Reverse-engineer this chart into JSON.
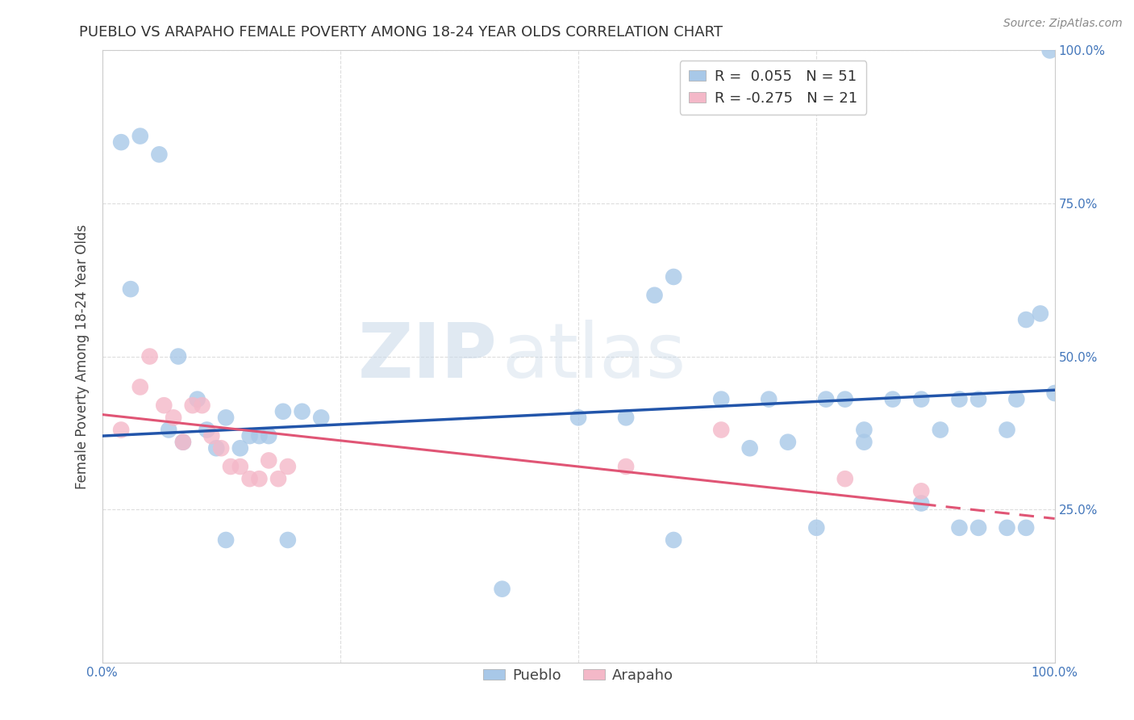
{
  "title": "PUEBLO VS ARAPAHO FEMALE POVERTY AMONG 18-24 YEAR OLDS CORRELATION CHART",
  "source": "Source: ZipAtlas.com",
  "xlabel": "",
  "ylabel": "Female Poverty Among 18-24 Year Olds",
  "xlim": [
    0.0,
    1.0
  ],
  "ylim": [
    0.0,
    1.0
  ],
  "xticks": [
    0.0,
    0.25,
    0.5,
    0.75,
    1.0
  ],
  "xticklabels": [
    "0.0%",
    "",
    "",
    "",
    "100.0%"
  ],
  "yticks": [
    0.0,
    0.25,
    0.5,
    0.75,
    1.0
  ],
  "yticklabels_right": [
    "",
    "25.0%",
    "50.0%",
    "75.0%",
    "100.0%"
  ],
  "pueblo_color": "#a8c8e8",
  "arapaho_color": "#f4b8c8",
  "pueblo_line_color": "#2255aa",
  "arapaho_line_color": "#e05575",
  "pueblo_R": 0.055,
  "pueblo_N": 51,
  "arapaho_R": -0.275,
  "arapaho_N": 21,
  "watermark_zip": "ZIP",
  "watermark_atlas": "atlas",
  "background_color": "#ffffff",
  "grid_color": "#dddddd",
  "pueblo_x": [
    0.02,
    0.04,
    0.06,
    0.07,
    0.085,
    0.1,
    0.11,
    0.12,
    0.13,
    0.145,
    0.155,
    0.165,
    0.175,
    0.19,
    0.21,
    0.23,
    0.5,
    0.58,
    0.6,
    0.65,
    0.7,
    0.72,
    0.76,
    0.78,
    0.8,
    0.83,
    0.86,
    0.88,
    0.9,
    0.92,
    0.95,
    0.96,
    0.97,
    0.985,
    0.995,
    0.03,
    0.08,
    0.13,
    0.195,
    0.42,
    0.55,
    0.6,
    0.68,
    0.75,
    0.8,
    0.86,
    0.9,
    0.92,
    0.95,
    0.97,
    1.0
  ],
  "pueblo_y": [
    0.85,
    0.86,
    0.83,
    0.38,
    0.36,
    0.43,
    0.38,
    0.35,
    0.4,
    0.35,
    0.37,
    0.37,
    0.37,
    0.41,
    0.41,
    0.4,
    0.4,
    0.6,
    0.63,
    0.43,
    0.43,
    0.36,
    0.43,
    0.43,
    0.36,
    0.43,
    0.43,
    0.38,
    0.43,
    0.43,
    0.38,
    0.43,
    0.56,
    0.57,
    1.0,
    0.61,
    0.5,
    0.2,
    0.2,
    0.12,
    0.4,
    0.2,
    0.35,
    0.22,
    0.38,
    0.26,
    0.22,
    0.22,
    0.22,
    0.22,
    0.44
  ],
  "arapaho_x": [
    0.02,
    0.04,
    0.05,
    0.065,
    0.075,
    0.085,
    0.095,
    0.105,
    0.115,
    0.125,
    0.135,
    0.145,
    0.155,
    0.165,
    0.175,
    0.185,
    0.195,
    0.55,
    0.65,
    0.78,
    0.86
  ],
  "arapaho_y": [
    0.38,
    0.45,
    0.5,
    0.42,
    0.4,
    0.36,
    0.42,
    0.42,
    0.37,
    0.35,
    0.32,
    0.32,
    0.3,
    0.3,
    0.33,
    0.3,
    0.32,
    0.32,
    0.38,
    0.3,
    0.28
  ],
  "pueblo_trendline_y0": 0.37,
  "pueblo_trendline_y1": 0.445,
  "arapaho_trendline_y0": 0.405,
  "arapaho_trendline_y1": 0.235
}
